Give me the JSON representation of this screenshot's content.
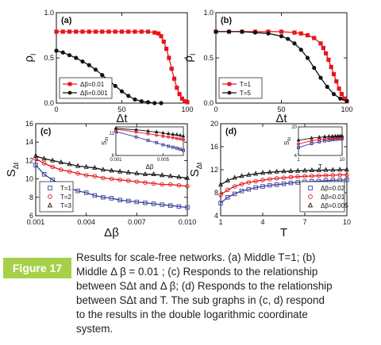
{
  "colors": {
    "red": "#e8141c",
    "black": "#111111",
    "blue": "#3a3f9a",
    "badge": "#a7d04a"
  },
  "chart_data": [
    {
      "panel": "(a)",
      "type": "line",
      "ylabel": "ρ_I",
      "xlabel": "Δt",
      "xlim": [
        0,
        100
      ],
      "ylim": [
        0,
        1.0
      ],
      "xticks": [
        "0",
        "50",
        "100"
      ],
      "yticks": [
        "0.0",
        "0.5",
        "1.0"
      ],
      "legend_loc": "bottom-left",
      "series": [
        {
          "name": "Δβ=0.01",
          "color": "red",
          "marker": "square",
          "x": [
            0,
            5,
            10,
            15,
            20,
            25,
            30,
            35,
            40,
            45,
            50,
            55,
            60,
            65,
            70,
            75,
            78,
            80,
            82,
            84,
            86,
            88,
            90,
            92,
            94,
            96,
            98,
            100
          ],
          "y": [
            0.79,
            0.79,
            0.79,
            0.79,
            0.79,
            0.79,
            0.79,
            0.79,
            0.79,
            0.79,
            0.79,
            0.79,
            0.79,
            0.79,
            0.79,
            0.78,
            0.77,
            0.74,
            0.68,
            0.6,
            0.5,
            0.38,
            0.27,
            0.17,
            0.1,
            0.05,
            0.02,
            0.01
          ]
        },
        {
          "name": "Δβ=0.001",
          "color": "black",
          "marker": "circle",
          "x": [
            0,
            5,
            10,
            15,
            20,
            25,
            30,
            35,
            40,
            45,
            50,
            55,
            60,
            65,
            70,
            75,
            80
          ],
          "y": [
            0.58,
            0.56,
            0.53,
            0.5,
            0.46,
            0.42,
            0.37,
            0.31,
            0.25,
            0.19,
            0.13,
            0.08,
            0.04,
            0.02,
            0.01,
            0.0,
            0.0
          ]
        }
      ]
    },
    {
      "panel": "(b)",
      "type": "line",
      "ylabel": "ρ_I",
      "xlabel": "Δt",
      "xlim": [
        0,
        100
      ],
      "ylim": [
        0,
        1.0
      ],
      "xticks": [
        "0",
        "50",
        "100"
      ],
      "yticks": [
        "0.0",
        "0.5",
        "1.0"
      ],
      "legend_loc": "bottom-left",
      "series": [
        {
          "name": "T=1",
          "color": "red",
          "marker": "square",
          "x": [
            0,
            10,
            20,
            30,
            40,
            50,
            60,
            65,
            70,
            75,
            80,
            82,
            84,
            86,
            88,
            90,
            92,
            94,
            96,
            98,
            100
          ],
          "y": [
            0.79,
            0.79,
            0.79,
            0.79,
            0.79,
            0.79,
            0.78,
            0.77,
            0.75,
            0.72,
            0.66,
            0.61,
            0.55,
            0.48,
            0.4,
            0.32,
            0.24,
            0.16,
            0.1,
            0.05,
            0.02
          ]
        },
        {
          "name": "T=5",
          "color": "black",
          "marker": "circle",
          "x": [
            0,
            10,
            20,
            30,
            40,
            50,
            55,
            60,
            65,
            70,
            75,
            80,
            85,
            90,
            95,
            100
          ],
          "y": [
            0.79,
            0.79,
            0.79,
            0.78,
            0.77,
            0.74,
            0.71,
            0.66,
            0.59,
            0.5,
            0.39,
            0.28,
            0.18,
            0.1,
            0.05,
            0.02
          ]
        }
      ]
    },
    {
      "panel": "(c)",
      "type": "line",
      "ylabel": "S_Δt",
      "xlabel": "Δβ",
      "xlim": [
        0.001,
        0.01
      ],
      "ylim": [
        6,
        16
      ],
      "xticks": [
        "0.001",
        "0.004",
        "0.007",
        "0.010"
      ],
      "yticks": [
        "6",
        "8",
        "10",
        "12",
        "14",
        "16"
      ],
      "legend_loc": "bottom-left",
      "series": [
        {
          "name": "T=1",
          "color": "blue",
          "marker": "open-square",
          "x": [
            0.001,
            0.0015,
            0.002,
            0.0025,
            0.003,
            0.0035,
            0.004,
            0.0045,
            0.005,
            0.0055,
            0.006,
            0.0065,
            0.007,
            0.0075,
            0.008,
            0.0085,
            0.009,
            0.0095,
            0.01
          ],
          "y": [
            11.5,
            10.5,
            9.9,
            9.4,
            9.0,
            8.7,
            8.5,
            8.2,
            8.0,
            7.9,
            7.7,
            7.6,
            7.5,
            7.4,
            7.3,
            7.2,
            7.1,
            7.0,
            6.9
          ]
        },
        {
          "name": "T=2",
          "color": "red",
          "marker": "open-circle",
          "x": [
            0.001,
            0.0015,
            0.002,
            0.0025,
            0.003,
            0.0035,
            0.004,
            0.0045,
            0.005,
            0.0055,
            0.006,
            0.0065,
            0.007,
            0.0075,
            0.008,
            0.0085,
            0.009,
            0.0095,
            0.01
          ],
          "y": [
            12.2,
            11.7,
            11.3,
            11.0,
            10.8,
            10.6,
            10.4,
            10.3,
            10.1,
            10.0,
            9.9,
            9.8,
            9.7,
            9.6,
            9.5,
            9.4,
            9.4,
            9.3,
            9.2
          ]
        },
        {
          "name": "T=3",
          "color": "black",
          "marker": "open-triangle",
          "x": [
            0.001,
            0.0015,
            0.002,
            0.0025,
            0.003,
            0.0035,
            0.004,
            0.0045,
            0.005,
            0.0055,
            0.006,
            0.0065,
            0.007,
            0.0075,
            0.008,
            0.0085,
            0.009,
            0.0095,
            0.01
          ],
          "y": [
            12.5,
            12.2,
            12.0,
            11.8,
            11.6,
            11.4,
            11.3,
            11.2,
            11.0,
            10.9,
            10.8,
            10.7,
            10.6,
            10.5,
            10.5,
            10.4,
            10.3,
            10.2,
            10.1
          ]
        }
      ],
      "inset": {
        "xlabel": "Δβ",
        "ylabel": "S_Δt",
        "scale": "log-log",
        "xlim": [
          0.001,
          0.01
        ],
        "ylim": [
          6,
          13
        ],
        "xticks": [
          "0.001",
          "0.005"
        ],
        "yticks": [
          "6",
          "11"
        ]
      }
    },
    {
      "panel": "(d)",
      "type": "line",
      "ylabel": "S_Δt",
      "xlabel": "T",
      "xlim": [
        1,
        10
      ],
      "ylim": [
        4,
        20
      ],
      "xticks": [
        "1",
        "4",
        "7",
        "10"
      ],
      "yticks": [
        "4",
        "8",
        "12",
        "16",
        "20"
      ],
      "legend_loc": "bottom-right",
      "series": [
        {
          "name": "Δβ=0.02",
          "color": "blue",
          "marker": "open-square",
          "x": [
            1,
            1.5,
            2,
            2.5,
            3,
            3.5,
            4,
            4.5,
            5,
            5.5,
            6,
            6.5,
            7,
            7.5,
            8,
            8.5,
            9,
            9.5,
            10
          ],
          "y": [
            6.2,
            7.2,
            7.8,
            8.3,
            8.6,
            8.9,
            9.1,
            9.3,
            9.4,
            9.55,
            9.7,
            9.8,
            9.9,
            9.95,
            10.0,
            10.1,
            10.15,
            10.2,
            10.25
          ]
        },
        {
          "name": "Δβ=0.01",
          "color": "red",
          "marker": "open-circle",
          "x": [
            1,
            1.5,
            2,
            2.5,
            3,
            3.5,
            4,
            4.5,
            5,
            5.5,
            6,
            6.5,
            7,
            7.5,
            8,
            8.5,
            9,
            9.5,
            10
          ],
          "y": [
            7.6,
            8.5,
            9.1,
            9.5,
            9.8,
            10.0,
            10.2,
            10.35,
            10.5,
            10.6,
            10.7,
            10.8,
            10.85,
            10.9,
            10.95,
            11.0,
            11.05,
            11.1,
            11.1
          ]
        },
        {
          "name": "Δβ=0.005",
          "color": "black",
          "marker": "open-triangle",
          "x": [
            1,
            1.5,
            2,
            2.5,
            3,
            3.5,
            4,
            4.5,
            5,
            5.5,
            6,
            6.5,
            7,
            7.5,
            8,
            8.5,
            9,
            9.5,
            10
          ],
          "y": [
            9.4,
            10.1,
            10.6,
            10.9,
            11.1,
            11.3,
            11.45,
            11.55,
            11.65,
            11.7,
            11.75,
            11.8,
            11.85,
            11.9,
            11.9,
            11.95,
            11.95,
            12.0,
            12.0
          ]
        }
      ],
      "inset": {
        "xlabel": "T",
        "ylabel": "S_Δt",
        "scale": "log-log",
        "xlim": [
          1,
          10
        ],
        "ylim": [
          4,
          20
        ],
        "xticks": [
          "1",
          "10"
        ],
        "yticks": [
          "4",
          "20"
        ]
      }
    }
  ],
  "figure_label": "Figure 17",
  "caption_lines": [
    "Results for scale-free networks. (a) Middle T=1; (b)",
    "Middle Δ β = 0.01 ; (c) Responds to the relationship",
    "between SΔt and Δ β; (d) Responds to the relationship",
    "between SΔt and T. The sub graphs in (c, d) respond",
    "to the results in the double logarithmic coordinate",
    "system."
  ]
}
